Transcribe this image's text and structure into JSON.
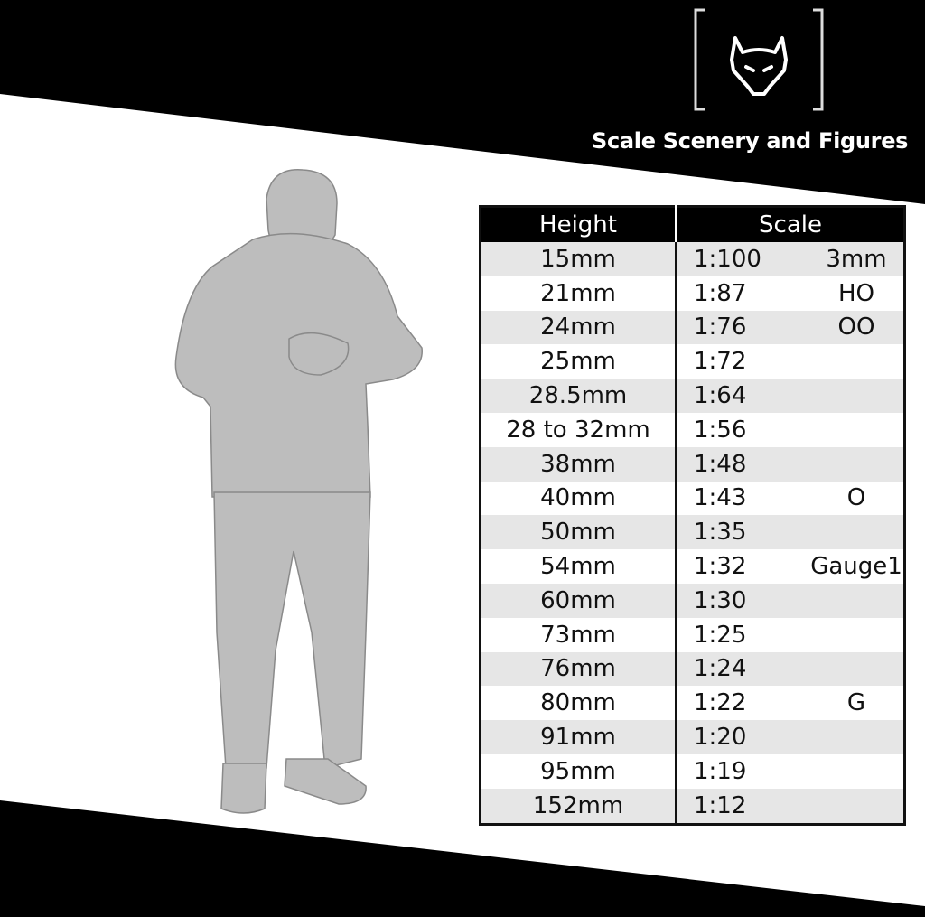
{
  "brand": {
    "name": "Scale Scenery and Figures",
    "logo_icon": "wolf-head-icon"
  },
  "colors": {
    "band": "#000000",
    "row_alt": "#e6e6e6",
    "figure": "#bdbdbd"
  },
  "table": {
    "headers": {
      "height": "Height",
      "scale": "Scale"
    },
    "rows": [
      {
        "height": "15mm",
        "ratio": "1:100",
        "gauge": "3mm"
      },
      {
        "height": "21mm",
        "ratio": "1:87",
        "gauge": "HO"
      },
      {
        "height": "24mm",
        "ratio": "1:76",
        "gauge": "OO"
      },
      {
        "height": "25mm",
        "ratio": "1:72",
        "gauge": ""
      },
      {
        "height": "28.5mm",
        "ratio": "1:64",
        "gauge": ""
      },
      {
        "height": "28 to 32mm",
        "ratio": "1:56",
        "gauge": ""
      },
      {
        "height": "38mm",
        "ratio": "1:48",
        "gauge": ""
      },
      {
        "height": "40mm",
        "ratio": "1:43",
        "gauge": "O"
      },
      {
        "height": "50mm",
        "ratio": "1:35",
        "gauge": ""
      },
      {
        "height": "54mm",
        "ratio": "1:32",
        "gauge": "Gauge1"
      },
      {
        "height": "60mm",
        "ratio": "1:30",
        "gauge": ""
      },
      {
        "height": "73mm",
        "ratio": "1:25",
        "gauge": ""
      },
      {
        "height": "76mm",
        "ratio": "1:24",
        "gauge": ""
      },
      {
        "height": "80mm",
        "ratio": "1:22",
        "gauge": "G"
      },
      {
        "height": "91mm",
        "ratio": "1:20",
        "gauge": ""
      },
      {
        "height": "95mm",
        "ratio": "1:19",
        "gauge": ""
      },
      {
        "height": "152mm",
        "ratio": "1:12",
        "gauge": ""
      }
    ]
  }
}
